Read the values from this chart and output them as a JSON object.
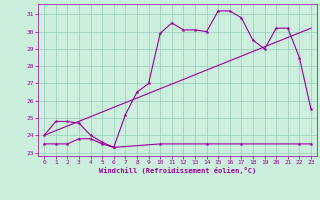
{
  "xlabel": "Windchill (Refroidissement éolien,°C)",
  "background_color": "#cceedd",
  "grid_color": "#99ccbb",
  "line_color": "#990099",
  "xlim": [
    -0.5,
    23.5
  ],
  "ylim": [
    22.8,
    31.6
  ],
  "yticks": [
    23,
    24,
    25,
    26,
    27,
    28,
    29,
    30,
    31
  ],
  "xticks": [
    0,
    1,
    2,
    3,
    4,
    5,
    6,
    7,
    8,
    9,
    10,
    11,
    12,
    13,
    14,
    15,
    16,
    17,
    18,
    19,
    20,
    21,
    22,
    23
  ],
  "series1_x": [
    0,
    1,
    2,
    3,
    4,
    5,
    6,
    7,
    8,
    9,
    10,
    11,
    12,
    13,
    14,
    15,
    16,
    17,
    18,
    19,
    20,
    21,
    22,
    23
  ],
  "series1_y": [
    24.0,
    24.8,
    24.8,
    24.7,
    24.0,
    23.6,
    23.3,
    25.2,
    26.5,
    27.0,
    29.9,
    30.5,
    30.1,
    30.1,
    30.0,
    31.2,
    31.2,
    30.8,
    29.5,
    29.0,
    30.2,
    30.2,
    28.5,
    25.5
  ],
  "series2_x": [
    0,
    23
  ],
  "series2_y": [
    24.0,
    30.2
  ],
  "series3_x": [
    0,
    1,
    2,
    3,
    4,
    5,
    6,
    10,
    14,
    17,
    22,
    23
  ],
  "series3_y": [
    23.5,
    23.5,
    23.5,
    23.8,
    23.8,
    23.5,
    23.3,
    23.5,
    23.5,
    23.5,
    23.5,
    23.5
  ]
}
